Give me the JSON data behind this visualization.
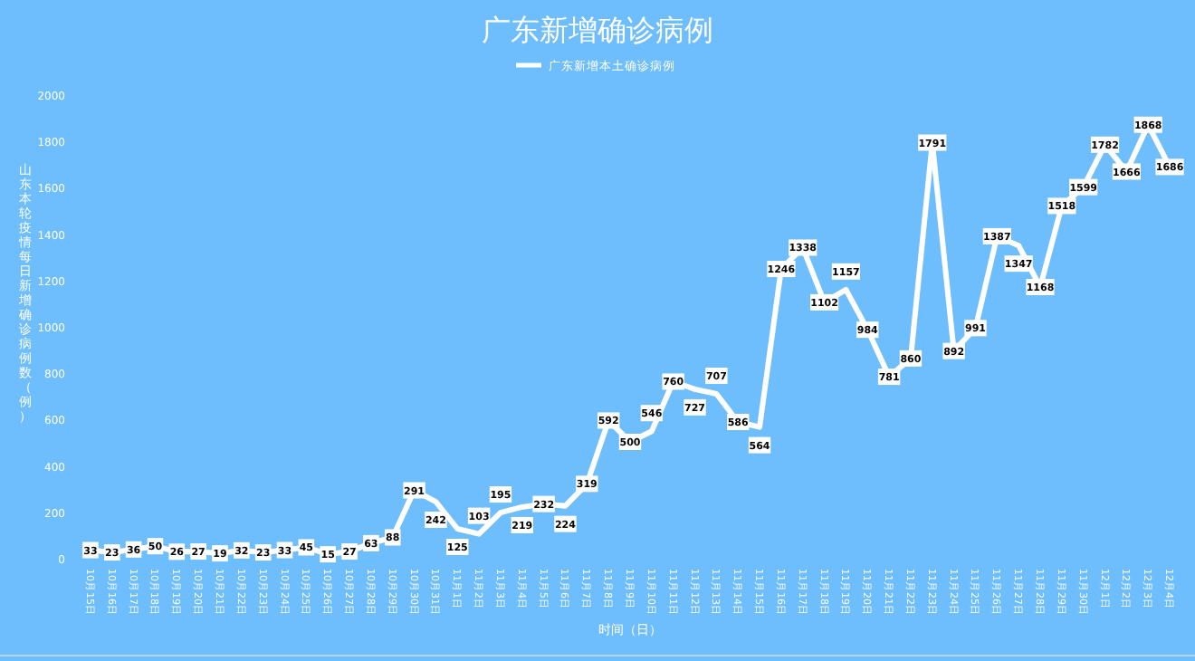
{
  "chart_data": {
    "type": "line",
    "title": "广东新增确诊病例",
    "xlabel": "时间（日）",
    "ylabel": "山东本轮疫情每日新增确诊病例数（例）",
    "categories": [
      "10月15日",
      "10月16日",
      "10月17日",
      "10月18日",
      "10月19日",
      "10月20日",
      "10月21日",
      "10月22日",
      "10月23日",
      "10月24日",
      "10月25日",
      "10月26日",
      "10月27日",
      "10月28日",
      "10月29日",
      "10月30日",
      "10月31日",
      "11月1日",
      "11月2日",
      "11月3日",
      "11月4日",
      "11月5日",
      "11月6日",
      "11月7日",
      "11月8日",
      "11月9日",
      "11月10日",
      "11月11日",
      "11月12日",
      "11月13日",
      "11月14日",
      "11月15日",
      "11月16日",
      "11月17日",
      "11月18日",
      "11月19日",
      "11月20日",
      "11月21日",
      "11月22日",
      "11月23日",
      "11月24日",
      "11月25日",
      "11月26日",
      "11月27日",
      "11月28日",
      "11月29日",
      "11月30日",
      "12月1日",
      "12月2日",
      "12月3日",
      "12月4日"
    ],
    "series": [
      {
        "name": "广东新增本土确诊病例",
        "color": "#ffffff",
        "values": [
          33,
          23,
          36,
          50,
          26,
          27,
          19,
          32,
          23,
          33,
          45,
          15,
          27,
          63,
          88,
          291,
          242,
          125,
          103,
          195,
          219,
          232,
          224,
          319,
          592,
          500,
          546,
          760,
          727,
          707,
          586,
          564,
          1246,
          1338,
          1102,
          1157,
          984,
          781,
          860,
          1791,
          892,
          991,
          1387,
          1347,
          1168,
          1518,
          1599,
          1782,
          1666,
          1868,
          1686
        ]
      }
    ],
    "ylim": [
      0,
      2000
    ],
    "yticks": [
      0,
      200,
      400,
      600,
      800,
      1000,
      1200,
      1400,
      1600,
      1800,
      2000
    ],
    "data_labels": true,
    "legend": "top",
    "grid": false,
    "line_style": "solid"
  }
}
